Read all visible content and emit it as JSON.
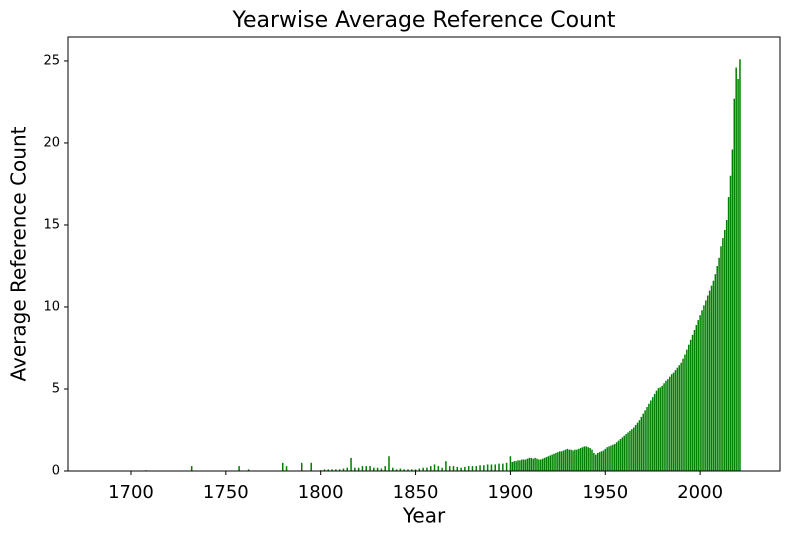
{
  "chart_data": {
    "type": "bar",
    "title": "Yearwise Average Reference Count",
    "xlabel": "Year",
    "ylabel": "Average Reference Count",
    "color": "#008000",
    "x": [
      1708,
      1732,
      1757,
      1762,
      1780,
      1782,
      1790,
      1795,
      1800,
      1802,
      1804,
      1806,
      1808,
      1810,
      1812,
      1814,
      1816,
      1818,
      1820,
      1822,
      1824,
      1826,
      1828,
      1830,
      1832,
      1834,
      1836,
      1838,
      1840,
      1842,
      1844,
      1846,
      1848,
      1850,
      1852,
      1854,
      1856,
      1858,
      1860,
      1862,
      1864,
      1866,
      1868,
      1870,
      1872,
      1874,
      1876,
      1878,
      1880,
      1882,
      1884,
      1886,
      1888,
      1890,
      1892,
      1894,
      1896,
      1898,
      1900,
      1901,
      1902,
      1903,
      1904,
      1905,
      1906,
      1907,
      1908,
      1909,
      1910,
      1911,
      1912,
      1913,
      1914,
      1915,
      1916,
      1917,
      1918,
      1919,
      1920,
      1921,
      1922,
      1923,
      1924,
      1925,
      1926,
      1927,
      1928,
      1929,
      1930,
      1931,
      1932,
      1933,
      1934,
      1935,
      1936,
      1937,
      1938,
      1939,
      1940,
      1941,
      1942,
      1943,
      1944,
      1945,
      1946,
      1947,
      1948,
      1949,
      1950,
      1951,
      1952,
      1953,
      1954,
      1955,
      1956,
      1957,
      1958,
      1959,
      1960,
      1961,
      1962,
      1963,
      1964,
      1965,
      1966,
      1967,
      1968,
      1969,
      1970,
      1971,
      1972,
      1973,
      1974,
      1975,
      1976,
      1977,
      1978,
      1979,
      1980,
      1981,
      1982,
      1983,
      1984,
      1985,
      1986,
      1987,
      1988,
      1989,
      1990,
      1991,
      1992,
      1993,
      1994,
      1995,
      1996,
      1997,
      1998,
      1999,
      2000,
      2001,
      2002,
      2003,
      2004,
      2005,
      2006,
      2007,
      2008,
      2009,
      2010,
      2011,
      2012,
      2013,
      2014,
      2015,
      2016,
      2017,
      2018,
      2019,
      2020,
      2021
    ],
    "values": [
      0.05,
      0.3,
      0.3,
      0.1,
      0.5,
      0.3,
      0.5,
      0.5,
      0.05,
      0.1,
      0.1,
      0.1,
      0.1,
      0.1,
      0.15,
      0.2,
      0.8,
      0.2,
      0.2,
      0.3,
      0.3,
      0.3,
      0.2,
      0.2,
      0.15,
      0.3,
      0.9,
      0.2,
      0.1,
      0.15,
      0.1,
      0.1,
      0.1,
      0.1,
      0.15,
      0.2,
      0.2,
      0.3,
      0.4,
      0.3,
      0.2,
      0.6,
      0.3,
      0.3,
      0.25,
      0.2,
      0.25,
      0.3,
      0.3,
      0.3,
      0.35,
      0.35,
      0.4,
      0.4,
      0.4,
      0.45,
      0.45,
      0.5,
      0.9,
      0.55,
      0.6,
      0.6,
      0.65,
      0.65,
      0.7,
      0.7,
      0.7,
      0.75,
      0.8,
      0.8,
      0.75,
      0.8,
      0.75,
      0.7,
      0.7,
      0.75,
      0.8,
      0.85,
      0.9,
      0.95,
      1.0,
      1.05,
      1.1,
      1.15,
      1.2,
      1.2,
      1.25,
      1.3,
      1.35,
      1.3,
      1.3,
      1.25,
      1.3,
      1.3,
      1.35,
      1.4,
      1.45,
      1.5,
      1.5,
      1.45,
      1.4,
      1.3,
      1.1,
      1.0,
      1.1,
      1.15,
      1.2,
      1.25,
      1.35,
      1.45,
      1.5,
      1.55,
      1.6,
      1.65,
      1.75,
      1.85,
      1.95,
      2.05,
      2.15,
      2.25,
      2.35,
      2.45,
      2.55,
      2.65,
      2.8,
      2.95,
      3.1,
      3.3,
      3.5,
      3.7,
      3.9,
      4.1,
      4.3,
      4.5,
      4.7,
      4.9,
      5.05,
      5.1,
      5.2,
      5.35,
      5.5,
      5.6,
      5.75,
      5.9,
      6.0,
      6.15,
      6.3,
      6.45,
      6.6,
      6.85,
      7.1,
      7.4,
      7.7,
      8.0,
      8.3,
      8.6,
      8.9,
      9.2,
      9.5,
      9.8,
      10.1,
      10.4,
      10.7,
      11.0,
      11.3,
      11.6,
      12.0,
      12.5,
      13.0,
      13.7,
      14.2,
      14.7,
      15.3,
      16.7,
      18.0,
      19.6,
      22.7,
      24.6,
      23.9,
      25.1
    ],
    "xlim": [
      1666.8,
      2042.1
    ],
    "xticks": [
      1700,
      1750,
      1800,
      1850,
      1900,
      1950,
      2000
    ],
    "ylim": [
      0,
      26.46
    ],
    "yticks": [
      0,
      5,
      10,
      15,
      20,
      25
    ]
  }
}
